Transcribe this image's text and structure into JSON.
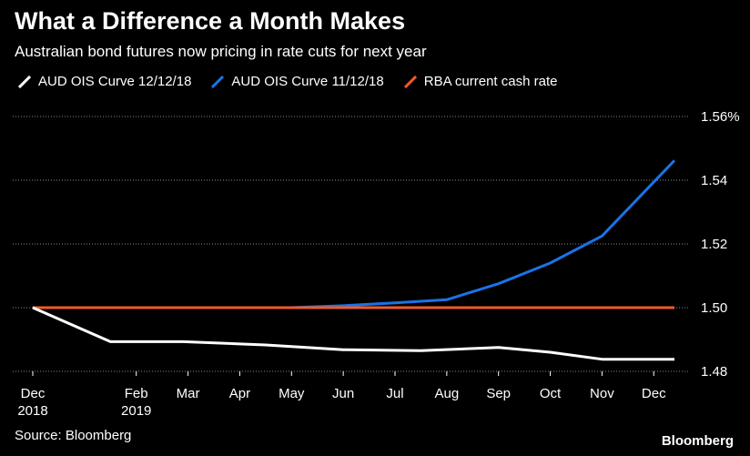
{
  "header": {
    "title": "What a Difference a Month Makes",
    "subtitle": "Australian bond futures now pricing in rate cuts for next year"
  },
  "footer": {
    "source": "Source: Bloomberg",
    "brand": "Bloomberg"
  },
  "chart_data": {
    "type": "line",
    "title": "What a Difference a Month Makes",
    "subtitle": "Australian bond futures now pricing in rate cuts for next year",
    "xlabel": "",
    "ylabel": "",
    "x_ticks": [
      {
        "label": [
          "Dec",
          "2018"
        ],
        "x": 0
      },
      {
        "label": [
          "Feb",
          "2019"
        ],
        "x": 2
      },
      {
        "label": [
          "Mar"
        ],
        "x": 3
      },
      {
        "label": [
          "Apr"
        ],
        "x": 4
      },
      {
        "label": [
          "May"
        ],
        "x": 5
      },
      {
        "label": [
          "Jun"
        ],
        "x": 6
      },
      {
        "label": [
          "Jul"
        ],
        "x": 7
      },
      {
        "label": [
          "Aug"
        ],
        "x": 8
      },
      {
        "label": [
          "Sep"
        ],
        "x": 9
      },
      {
        "label": [
          "Oct"
        ],
        "x": 10
      },
      {
        "label": [
          "Nov"
        ],
        "x": 11
      },
      {
        "label": [
          "Dec"
        ],
        "x": 12
      }
    ],
    "xlim": [
      0,
      12.4
    ],
    "ylim": [
      1.48,
      1.56
    ],
    "y_ticks": [
      1.48,
      1.5,
      1.52,
      1.54,
      1.56
    ],
    "y_tick_labels": [
      "1.48",
      "1.50",
      "1.52",
      "1.54",
      "1.56%"
    ],
    "grid": true,
    "legend_position": "top-left",
    "series": [
      {
        "name": "AUD OIS Curve 12/12/18",
        "color": "#ffffff",
        "points": [
          [
            0,
            1.5
          ],
          [
            1.5,
            1.4893
          ],
          [
            2.9,
            1.4893
          ],
          [
            4.5,
            1.4883
          ],
          [
            6,
            1.4868
          ],
          [
            7.5,
            1.4865
          ],
          [
            9,
            1.4875
          ],
          [
            10,
            1.486
          ],
          [
            11,
            1.4838
          ],
          [
            12.4,
            1.4838
          ]
        ]
      },
      {
        "name": "AUD OIS Curve 11/12/18",
        "color": "#1a73e8",
        "points": [
          [
            0,
            1.5
          ],
          [
            5,
            1.5
          ],
          [
            6,
            1.5006
          ],
          [
            7,
            1.5015
          ],
          [
            8,
            1.5025
          ],
          [
            9,
            1.5075
          ],
          [
            10,
            1.514
          ],
          [
            11,
            1.5225
          ],
          [
            12.4,
            1.5462
          ]
        ]
      },
      {
        "name": "RBA current cash rate",
        "color": "#f05a28",
        "points": [
          [
            0,
            1.5
          ],
          [
            12.4,
            1.5
          ]
        ]
      }
    ]
  }
}
